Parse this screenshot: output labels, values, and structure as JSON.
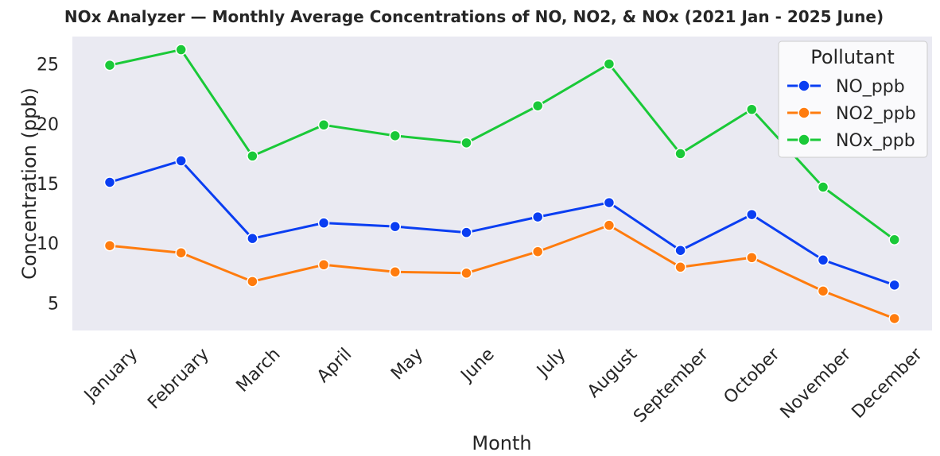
{
  "chart_data": {
    "type": "line",
    "title": "NOx Analyzer — Monthly Average Concentrations of NO, NO2, & NOx (2021 Jan - 2025 June)",
    "xlabel": "Month",
    "ylabel": "Concentration (ppb)",
    "categories": [
      "January",
      "February",
      "March",
      "April",
      "May",
      "June",
      "July",
      "August",
      "September",
      "October",
      "November",
      "December"
    ],
    "y_ticks": [
      5,
      10,
      15,
      20,
      25
    ],
    "ylim": [
      2.7,
      27.3
    ],
    "grid": false,
    "legend": {
      "title": "Pollutant",
      "placement": "top-right"
    },
    "series": [
      {
        "name": "NO_ppb",
        "color": "#0a3ef2",
        "values": [
          15.1,
          16.9,
          10.4,
          11.7,
          11.4,
          10.9,
          12.2,
          13.4,
          9.4,
          12.4,
          8.6,
          6.5
        ]
      },
      {
        "name": "NO2_ppb",
        "color": "#ff7c0e",
        "values": [
          9.8,
          9.2,
          6.8,
          8.2,
          7.6,
          7.5,
          9.3,
          11.5,
          8.0,
          8.8,
          6.0,
          3.7
        ]
      },
      {
        "name": "NOx_ppb",
        "color": "#1ac938",
        "values": [
          24.9,
          26.2,
          17.3,
          19.9,
          19.0,
          18.4,
          21.5,
          25.0,
          17.5,
          21.2,
          14.7,
          10.3
        ]
      }
    ]
  }
}
